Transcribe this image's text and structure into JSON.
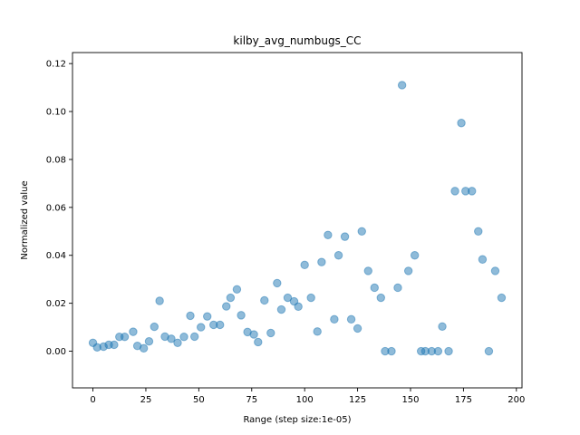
{
  "chart_data": {
    "type": "scatter",
    "title": "kilby_avg_numbugs_CC",
    "xlabel": "Range (step size:1e-05)",
    "ylabel": "Normalized value",
    "xlim": [
      -9.65,
      202.65
    ],
    "ylim": [
      -0.0153,
      0.1246
    ],
    "xticks": [
      0,
      25,
      50,
      75,
      100,
      125,
      150,
      175,
      200
    ],
    "xtick_labels": [
      "0",
      "25",
      "50",
      "75",
      "100",
      "125",
      "150",
      "175",
      "200"
    ],
    "yticks": [
      0.0,
      0.02,
      0.04,
      0.06,
      0.08,
      0.1,
      0.12
    ],
    "ytick_labels": [
      "0.00",
      "0.02",
      "0.04",
      "0.06",
      "0.08",
      "0.10",
      "0.12"
    ],
    "grid": false,
    "marker_color": "#1f77b4",
    "marker_alpha": 0.5,
    "points": [
      [
        0,
        0.0035
      ],
      [
        2,
        0.0016
      ],
      [
        5,
        0.0019
      ],
      [
        7.5,
        0.0027
      ],
      [
        10,
        0.0027
      ],
      [
        12.5,
        0.006
      ],
      [
        15,
        0.006
      ],
      [
        19,
        0.0081
      ],
      [
        21,
        0.0022
      ],
      [
        24,
        0.0012
      ],
      [
        26.5,
        0.0041
      ],
      [
        29,
        0.0102
      ],
      [
        31.5,
        0.021
      ],
      [
        34,
        0.0061
      ],
      [
        37,
        0.0052
      ],
      [
        40,
        0.0035
      ],
      [
        43,
        0.006
      ],
      [
        46,
        0.0148
      ],
      [
        48,
        0.0061
      ],
      [
        51,
        0.01
      ],
      [
        54,
        0.0145
      ],
      [
        57,
        0.011
      ],
      [
        60,
        0.011
      ],
      [
        63,
        0.0187
      ],
      [
        65,
        0.0223
      ],
      [
        68,
        0.0258
      ],
      [
        70,
        0.015
      ],
      [
        73,
        0.008
      ],
      [
        76,
        0.007
      ],
      [
        78,
        0.0038
      ],
      [
        81,
        0.0212
      ],
      [
        84,
        0.0076
      ],
      [
        87,
        0.0284
      ],
      [
        89,
        0.0174
      ],
      [
        92,
        0.0223
      ],
      [
        95,
        0.0208
      ],
      [
        97,
        0.0186
      ],
      [
        100,
        0.036
      ],
      [
        103,
        0.0223
      ],
      [
        106,
        0.0082
      ],
      [
        108,
        0.0372
      ],
      [
        111,
        0.0485
      ],
      [
        114,
        0.0133
      ],
      [
        116,
        0.04
      ],
      [
        119,
        0.0478
      ],
      [
        122,
        0.0133
      ],
      [
        125,
        0.0095
      ],
      [
        127,
        0.05
      ],
      [
        130,
        0.0335
      ],
      [
        133,
        0.0265
      ],
      [
        136,
        0.0223
      ],
      [
        138,
        0.0
      ],
      [
        141,
        0.0
      ],
      [
        144,
        0.0265
      ],
      [
        146,
        0.111
      ],
      [
        149,
        0.0335
      ],
      [
        152,
        0.04
      ],
      [
        155,
        0.0
      ],
      [
        157,
        0.0
      ],
      [
        160,
        0.0
      ],
      [
        163,
        0.0
      ],
      [
        165,
        0.0103
      ],
      [
        168,
        0.0
      ],
      [
        171,
        0.0668
      ],
      [
        174,
        0.0952
      ],
      [
        176,
        0.0668
      ],
      [
        179,
        0.0668
      ],
      [
        182,
        0.05
      ],
      [
        184,
        0.0383
      ],
      [
        187,
        0.0
      ],
      [
        190,
        0.0335
      ],
      [
        193,
        0.0223
      ]
    ]
  }
}
